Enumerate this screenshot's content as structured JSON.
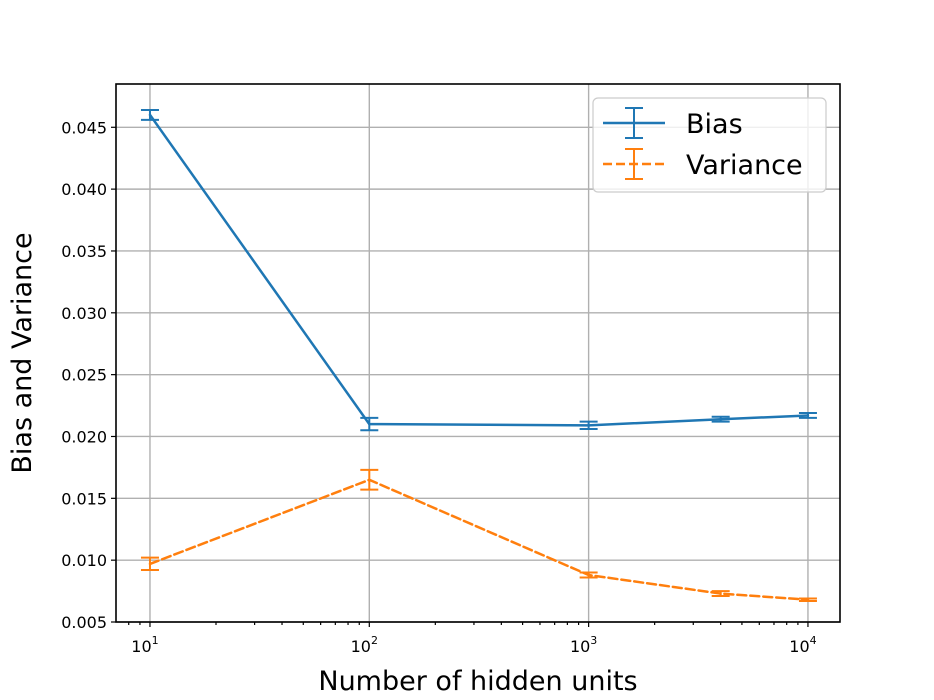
{
  "chart_data": {
    "type": "line",
    "xlabel": "Number of hidden units",
    "ylabel": "Bias and Variance",
    "xscale": "log",
    "xlim": [
      7,
      14000
    ],
    "ylim": [
      0.005,
      0.0485
    ],
    "grid": true,
    "legend_position": "top-right",
    "x_ticks": [
      {
        "value": 10,
        "base": "10",
        "exp": "1"
      },
      {
        "value": 100,
        "base": "10",
        "exp": "2"
      },
      {
        "value": 1000,
        "base": "10",
        "exp": "3"
      },
      {
        "value": 10000,
        "base": "10",
        "exp": "4"
      }
    ],
    "y_ticks": [
      {
        "value": 0.005,
        "label": "0.005"
      },
      {
        "value": 0.01,
        "label": "0.010"
      },
      {
        "value": 0.015,
        "label": "0.015"
      },
      {
        "value": 0.02,
        "label": "0.020"
      },
      {
        "value": 0.025,
        "label": "0.025"
      },
      {
        "value": 0.03,
        "label": "0.030"
      },
      {
        "value": 0.035,
        "label": "0.035"
      },
      {
        "value": 0.04,
        "label": "0.040"
      },
      {
        "value": 0.045,
        "label": "0.045"
      }
    ],
    "series": [
      {
        "name": "Bias",
        "color": "#1f77b4",
        "dash": "solid",
        "x": [
          10,
          100,
          1000,
          4000,
          10000
        ],
        "values": [
          0.046,
          0.021,
          0.0209,
          0.0214,
          0.0217
        ],
        "errors": [
          0.0004,
          0.0005,
          0.0003,
          0.0002,
          0.0002
        ]
      },
      {
        "name": "Variance",
        "color": "#ff7f0e",
        "dash": "dashed",
        "x": [
          10,
          100,
          1000,
          4000,
          10000
        ],
        "values": [
          0.0097,
          0.0165,
          0.0088,
          0.0073,
          0.0068
        ],
        "errors": [
          0.0005,
          0.0008,
          0.0002,
          0.0002,
          0.0001
        ]
      }
    ]
  }
}
